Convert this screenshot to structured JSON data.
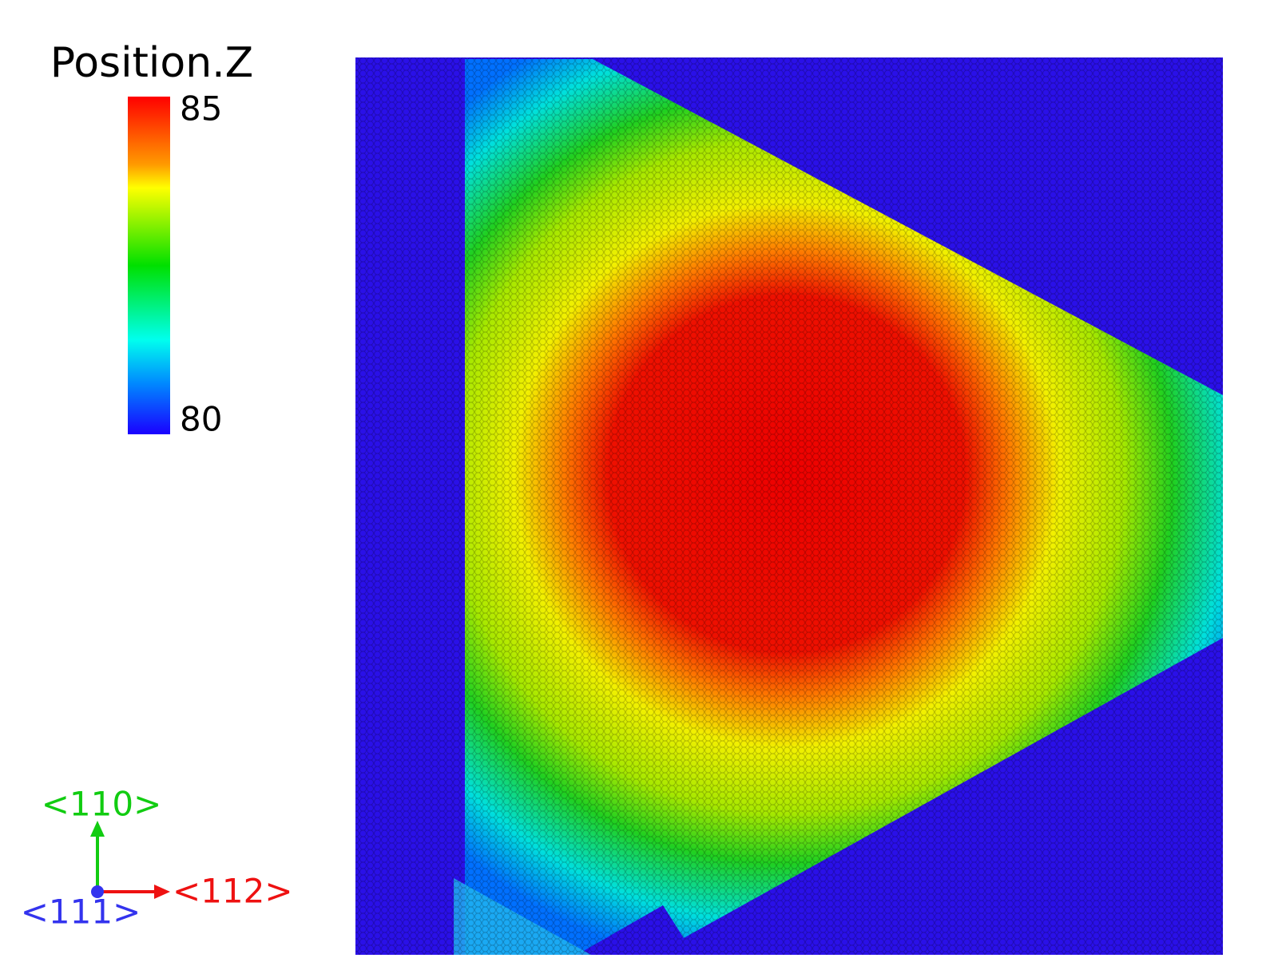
{
  "legend": {
    "title": "Position.Z",
    "max": 85,
    "min": 80
  },
  "axes": {
    "y": "<110>",
    "x": "<112>",
    "z": "<111>"
  }
}
